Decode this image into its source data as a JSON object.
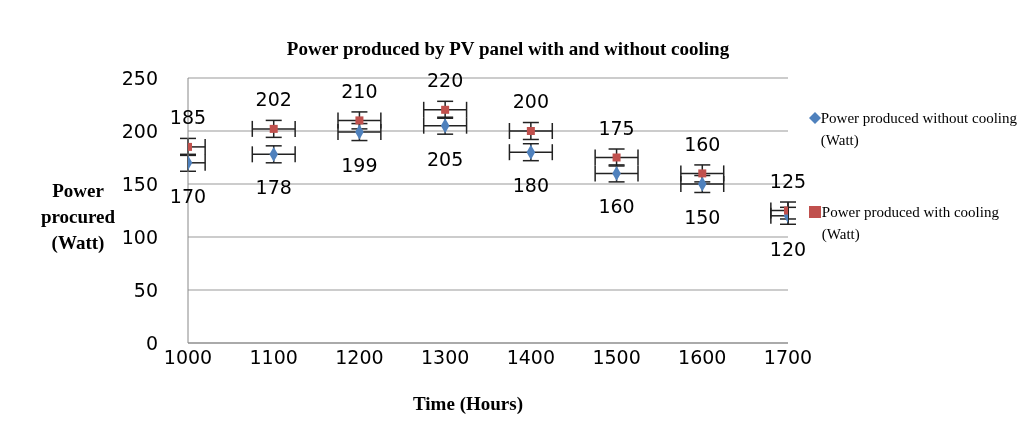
{
  "chart_data": {
    "type": "scatter",
    "title": "Power produced by PV panel with and without cooling",
    "xlabel": "Time (Hours)",
    "ylabel": "Power procured (Watt)",
    "x": [
      1000,
      1100,
      1200,
      1300,
      1400,
      1500,
      1600,
      1700
    ],
    "series": [
      {
        "name": "Power produced without cooling (Watt)",
        "color": "#4f81bd",
        "marker": "diamond",
        "values": [
          170,
          178,
          199,
          205,
          180,
          160,
          150,
          120
        ],
        "errors": [
          8,
          8,
          8,
          8,
          8,
          8,
          8,
          8
        ],
        "xerrors": [
          [
            1000,
            1020
          ],
          25,
          25,
          25,
          25,
          25,
          25,
          [
            1680,
            1700
          ]
        ]
      },
      {
        "name": "Power produced with cooling (Watt)",
        "color": "#c0504d",
        "marker": "square",
        "values": [
          185,
          202,
          210,
          220,
          200,
          175,
          160,
          125
        ],
        "errors": [
          8,
          8,
          8,
          8,
          8,
          8,
          8,
          8
        ],
        "xerrors": [
          [
            1000,
            1020
          ],
          25,
          25,
          25,
          25,
          25,
          25,
          [
            1680,
            1700
          ]
        ]
      }
    ],
    "xlim": [
      1000,
      1700
    ],
    "xticks": [
      1000,
      1100,
      1200,
      1300,
      1400,
      1500,
      1600,
      1700
    ],
    "ylim": [
      0,
      250
    ],
    "yticks": [
      0,
      50,
      100,
      150,
      200,
      250
    ],
    "grid": "y",
    "legend": "right",
    "data_labels": true
  }
}
